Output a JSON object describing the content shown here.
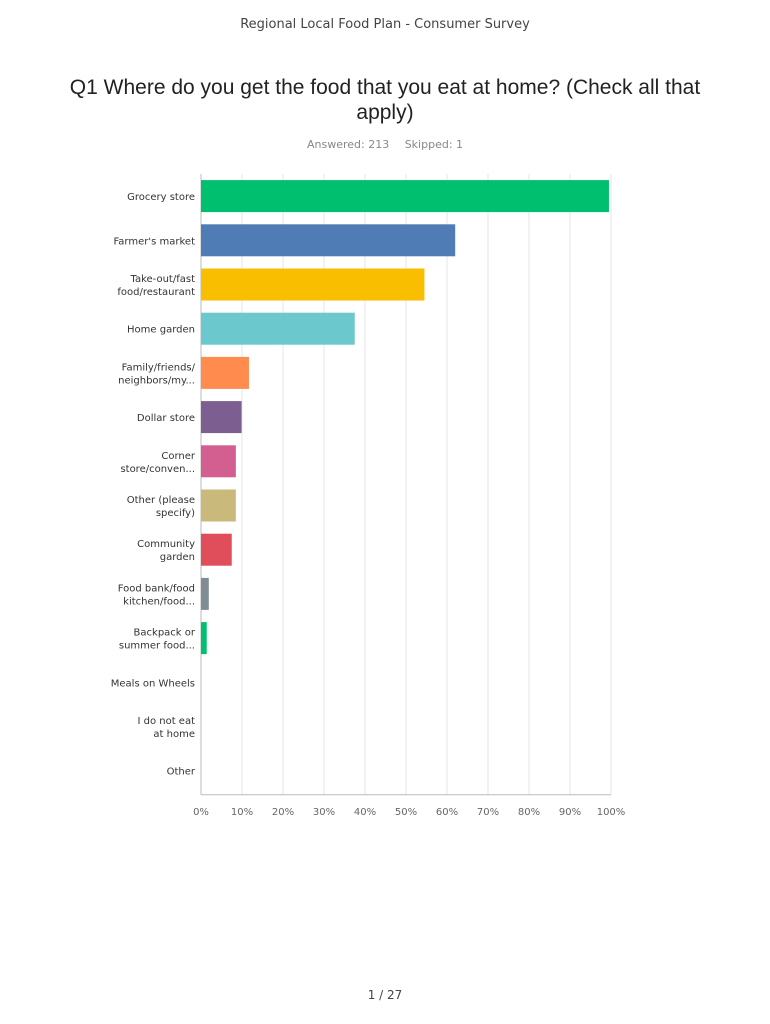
{
  "header": {
    "title": "Regional Local Food Plan - Consumer Survey"
  },
  "question": {
    "title": "Q1 Where do you get the food that you eat at home? (Check all that apply)"
  },
  "stats": {
    "answered": "Answered: 213",
    "skipped": "Skipped: 1"
  },
  "footer": {
    "page": "1 / 27"
  },
  "chart_data": {
    "type": "bar",
    "orientation": "horizontal",
    "categories": [
      [
        "Grocery store"
      ],
      [
        "Farmer's market"
      ],
      [
        "Take-out/fast",
        "food/restaurant"
      ],
      [
        "Home garden"
      ],
      [
        "Family/friends/",
        "neighbors/my..."
      ],
      [
        "Dollar store"
      ],
      [
        "Corner",
        "store/conven..."
      ],
      [
        "Other (please",
        "specify)"
      ],
      [
        "Community",
        "garden"
      ],
      [
        "Food bank/food",
        "kitchen/food..."
      ],
      [
        "Backpack or",
        "summer food..."
      ],
      [
        "Meals on Wheels"
      ],
      [
        "I do not eat",
        "at home"
      ],
      [
        "Other"
      ]
    ],
    "values": [
      99.5,
      62,
      54.5,
      37.5,
      11.7,
      9.9,
      8.5,
      8.5,
      7.5,
      1.9,
      1.4,
      0,
      0,
      0
    ],
    "colors": [
      "#00bf6f",
      "#507cb6",
      "#f9be00",
      "#6bc8cd",
      "#ff8b4f",
      "#7d5e90",
      "#d25f90",
      "#c9b97b",
      "#e04e5b",
      "#7f8c93",
      "#00bf6f",
      "#507cb6",
      "#f9be00",
      "#6bc8cd"
    ],
    "xlim": [
      0,
      100
    ],
    "xticks": [
      "0%",
      "10%",
      "20%",
      "30%",
      "40%",
      "50%",
      "60%",
      "70%",
      "80%",
      "90%",
      "100%"
    ],
    "grid": true
  }
}
